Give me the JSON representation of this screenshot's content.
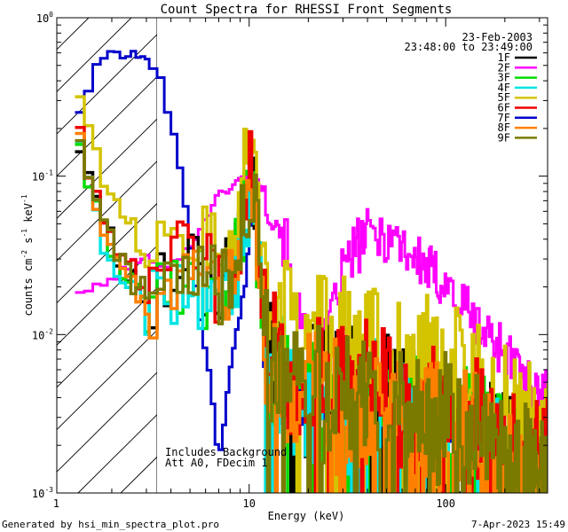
{
  "chart_data": {
    "type": "line",
    "title": "Count Spectra for RHESSI Front Segments",
    "xlabel": "Energy (keV)",
    "ylabel_parts": [
      "counts cm",
      "-2",
      " s",
      "-1",
      " keV",
      "-1"
    ],
    "x_scale": "log",
    "y_scale": "log",
    "xlim": [
      1.05,
      330
    ],
    "ylim": [
      0.001,
      1.0
    ],
    "x_ticks": [
      {
        "value": 10,
        "label": "10"
      },
      {
        "value": 100,
        "label": "100"
      }
    ],
    "y_ticks": [
      {
        "value": 0.001,
        "base": "10",
        "exp": "-3"
      },
      {
        "value": 0.01,
        "base": "10",
        "exp": "-2"
      },
      {
        "value": 0.1,
        "base": "10",
        "exp": "-1"
      },
      {
        "value": 1.0,
        "base": "10",
        "exp": "0"
      }
    ],
    "shaded_region": {
      "from": 1.05,
      "to": 3.0,
      "style": "diagonal-hatch"
    },
    "date_label": "23-Feb-2003",
    "time_range_label": "23:48:00 to 23:49:00",
    "annotation_lines": [
      "Includes Background",
      "Att A0, FDecim 1"
    ],
    "series": [
      {
        "name": "1F",
        "color": "#000000",
        "base_scale": 1.0
      },
      {
        "name": "2F",
        "color": "#ff00ff",
        "base_scale": 1.0
      },
      {
        "name": "3F",
        "color": "#00dd00",
        "base_scale": 0.95
      },
      {
        "name": "4F",
        "color": "#00e5e5",
        "base_scale": 0.85
      },
      {
        "name": "5F",
        "color": "#d4c400",
        "base_scale": 2.1
      },
      {
        "name": "6F",
        "color": "#ee0000",
        "base_scale": 1.15
      },
      {
        "name": "7F",
        "color": "#0000cc",
        "base_scale": 1.0
      },
      {
        "name": "8F",
        "color": "#ff8000",
        "base_scale": 0.9
      },
      {
        "name": "9F",
        "color": "#7a7a00",
        "base_scale": 1.05
      }
    ],
    "spectra_shapes": {
      "default_low_energy": [
        [
          1.3,
          0.25
        ],
        [
          1.45,
          0.12
        ],
        [
          1.6,
          0.08
        ],
        [
          1.75,
          0.05
        ],
        [
          1.95,
          0.04
        ],
        [
          2.2,
          0.028
        ],
        [
          2.5,
          0.022
        ],
        [
          2.9,
          0.018
        ],
        [
          3.5,
          0.02
        ],
        [
          4.5,
          0.025
        ],
        [
          5.5,
          0.022
        ],
        [
          7.0,
          0.018
        ],
        [
          8.5,
          0.028
        ],
        [
          10.3,
          0.1
        ],
        [
          11.2,
          0.03
        ],
        [
          12.5,
          0.007
        ],
        [
          16,
          0.005
        ],
        [
          25,
          0.004
        ],
        [
          45,
          0.004
        ],
        [
          80,
          0.003
        ],
        [
          130,
          0.0025
        ],
        [
          200,
          0.0015
        ],
        [
          300,
          0.0012
        ]
      ],
      "7F_attenuated": [
        [
          1.3,
          0.2
        ],
        [
          1.5,
          0.35
        ],
        [
          1.7,
          0.5
        ],
        [
          1.9,
          0.58
        ],
        [
          2.2,
          0.6
        ],
        [
          2.6,
          0.58
        ],
        [
          3.0,
          0.52
        ],
        [
          3.5,
          0.42
        ],
        [
          4.0,
          0.22
        ],
        [
          4.5,
          0.1
        ],
        [
          5.0,
          0.04
        ],
        [
          5.5,
          0.015
        ],
        [
          6.0,
          0.008
        ],
        [
          6.5,
          0.004
        ],
        [
          7.0,
          0.0015
        ],
        [
          8.0,
          0.006
        ],
        [
          9.5,
          0.02
        ],
        [
          10.5,
          0.08
        ],
        [
          11.2,
          0.03
        ],
        [
          12,
          0.006
        ],
        [
          16,
          0.004
        ],
        [
          30,
          0.0035
        ],
        [
          60,
          0.003
        ],
        [
          100,
          0.0025
        ],
        [
          180,
          0.0018
        ],
        [
          300,
          0.0013
        ]
      ],
      "2F_thermal": [
        [
          1.3,
          0.019
        ],
        [
          1.6,
          0.019
        ],
        [
          2.0,
          0.022
        ],
        [
          2.5,
          0.028
        ],
        [
          3.0,
          0.03
        ],
        [
          4.0,
          0.028
        ],
        [
          5.0,
          0.035
        ],
        [
          6.0,
          0.055
        ],
        [
          7.0,
          0.075
        ],
        [
          8.0,
          0.085
        ],
        [
          9.0,
          0.095
        ],
        [
          10.3,
          0.105
        ],
        [
          11.2,
          0.09
        ],
        [
          12.5,
          0.075
        ],
        [
          14,
          0.055
        ],
        [
          16,
          0.03
        ],
        [
          18,
          0.012
        ],
        [
          20,
          0.008
        ],
        [
          22,
          0.007
        ],
        [
          25,
          0.009
        ],
        [
          30,
          0.025
        ],
        [
          35,
          0.035
        ],
        [
          40,
          0.042
        ],
        [
          50,
          0.043
        ],
        [
          60,
          0.038
        ],
        [
          70,
          0.03
        ],
        [
          90,
          0.023
        ],
        [
          110,
          0.018
        ],
        [
          150,
          0.011
        ],
        [
          200,
          0.008
        ],
        [
          250,
          0.005
        ],
        [
          320,
          0.004
        ]
      ]
    }
  }
}
